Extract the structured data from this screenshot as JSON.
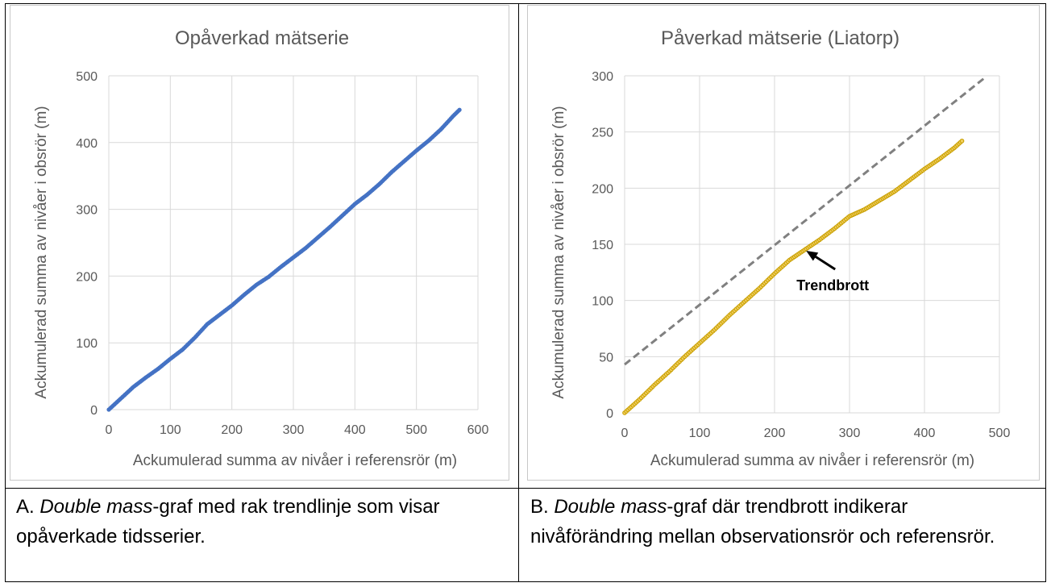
{
  "chart_data": [
    {
      "type": "scatter",
      "title": "Opåverkad mätserie",
      "xlabel": "Ackumulerad summa av nivåer i referensrör (m)",
      "ylabel": "Ackumulerad summa av nivåer i obsrör (m)",
      "xlim": [
        0,
        600
      ],
      "ylim": [
        0,
        500
      ],
      "xticks": [
        0,
        100,
        200,
        300,
        400,
        500,
        600
      ],
      "yticks": [
        0,
        100,
        200,
        300,
        400,
        500
      ],
      "grid": true,
      "series": [
        {
          "color": "#4472C4",
          "x": [
            0,
            20,
            40,
            60,
            80,
            100,
            120,
            140,
            160,
            180,
            200,
            220,
            240,
            260,
            280,
            300,
            320,
            340,
            360,
            380,
            400,
            420,
            440,
            460,
            480,
            500,
            520,
            540,
            560,
            570
          ],
          "y": [
            0,
            17,
            34,
            48,
            61,
            76,
            90,
            108,
            128,
            142,
            156,
            172,
            187,
            199,
            214,
            228,
            242,
            258,
            274,
            291,
            308,
            322,
            338,
            356,
            372,
            388,
            403,
            420,
            440,
            449
          ]
        }
      ]
    },
    {
      "type": "scatter",
      "title": "Påverkad mätserie (Liatorp)",
      "xlabel": "Ackumulerad summa av nivåer i referensrör (m)",
      "ylabel": "Ackumulerad summa av nivåer i obsrör (m)",
      "xlim": [
        0,
        500
      ],
      "ylim": [
        0,
        300
      ],
      "xticks": [
        0,
        100,
        200,
        300,
        400,
        500
      ],
      "yticks": [
        0,
        50,
        100,
        150,
        200,
        250,
        300
      ],
      "grid": true,
      "annotation": "Trendbrott",
      "series": [
        {
          "color": "#C9A005",
          "x": [
            0,
            20,
            40,
            60,
            80,
            100,
            120,
            140,
            160,
            180,
            200,
            220,
            240,
            260,
            280,
            300,
            320,
            340,
            360,
            380,
            400,
            420,
            440,
            450
          ],
          "y": [
            0,
            12,
            25,
            37,
            50,
            62,
            74,
            87,
            99,
            111,
            124,
            136,
            145,
            154,
            164,
            175,
            181,
            189,
            197,
            207,
            217,
            226,
            236,
            242
          ]
        },
        {
          "color": "#808080",
          "style": "dashed",
          "x": [
            0,
            480
          ],
          "y": [
            43,
            298
          ]
        }
      ]
    }
  ],
  "captions": {
    "a": {
      "prefix": "A. ",
      "italic": "Double mass",
      "rest": "-graf med rak trendlinje som visar opåverkade tidsserier."
    },
    "b": {
      "prefix": "B. ",
      "italic": "Double mass",
      "rest": "-graf där trendbrott indikerar nivåförändring mellan observationsrör och referensrör."
    }
  }
}
